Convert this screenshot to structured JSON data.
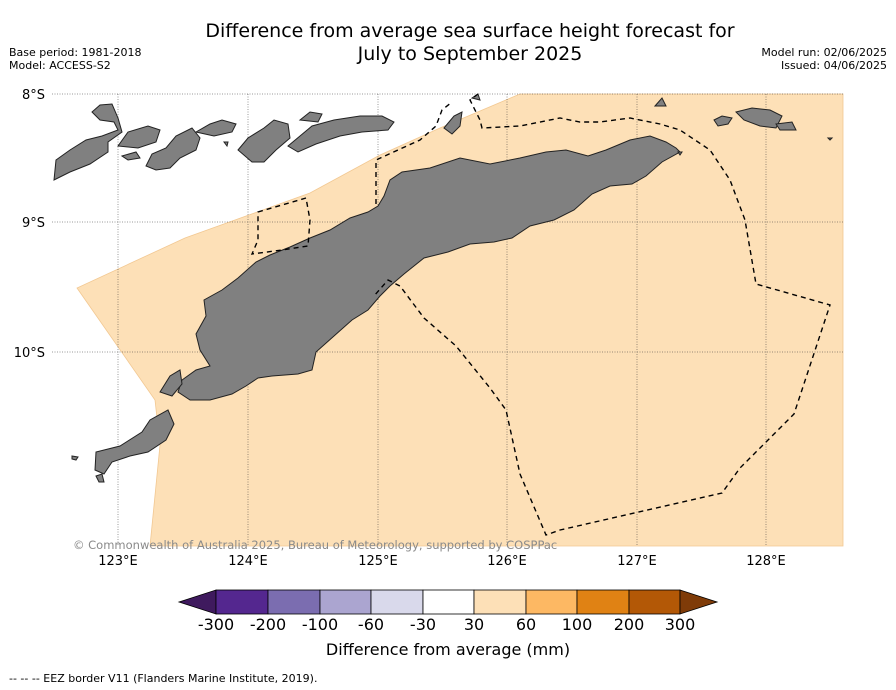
{
  "header": {
    "title_line1": "Difference from average sea surface height forecast for",
    "title_line2": "July to September 2025",
    "base_period": "Base period: 1981-2018",
    "model": "Model: ACCESS-S2",
    "model_run": "Model run: 02/06/2025",
    "issued": "Issued: 04/06/2025"
  },
  "map": {
    "lat_labels": [
      "8°S",
      "9°S",
      "10°S"
    ],
    "lon_labels": [
      "123°E",
      "124°E",
      "125°E",
      "126°E",
      "127°E",
      "128°E"
    ],
    "copyright": "© Commonwealth of Australia 2025, Bureau of Meteorology, supported by COSPPac",
    "ocean_anomaly_category": "30 to 60",
    "colors": {
      "ocean_anomaly": "#fde0b7",
      "land": "#808080",
      "coast": "#222222"
    }
  },
  "colorbar": {
    "ticks": [
      "-300",
      "-200",
      "-100",
      "-60",
      "-30",
      "30",
      "60",
      "100",
      "200",
      "300"
    ],
    "colors": [
      "#3f1a5e",
      "#54278f",
      "#7b6db0",
      "#aba5d0",
      "#d9d9eb",
      "#ffffff",
      "#fde0b7",
      "#fdb863",
      "#e08214",
      "#b35806",
      "#7f3b08"
    ],
    "label": "Difference from average (mm)"
  },
  "legend": {
    "eez_note": "--  --  -- EEZ border V11 (Flanders Marine Institute, 2019)."
  }
}
